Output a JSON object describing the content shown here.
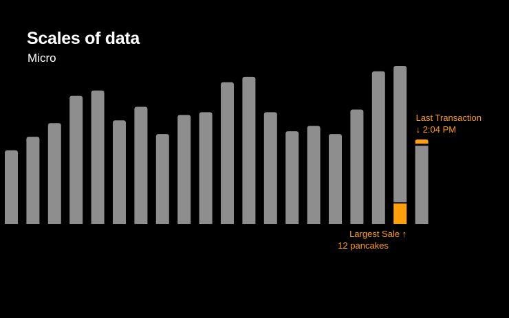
{
  "header": {
    "title": "Scales of data",
    "subtitle": "Micro"
  },
  "colors": {
    "background": "#000000",
    "bar": "#8e8e8f",
    "highlight": "#ff9f0a",
    "text": "#ffffff"
  },
  "chart_data": {
    "type": "bar",
    "title": "Scales of data",
    "subtitle": "Micro",
    "xlabel": "",
    "ylabel": "",
    "grid": false,
    "values": [
      27,
      32,
      37,
      47,
      49,
      38,
      43,
      33,
      40,
      41,
      52,
      54,
      41,
      34,
      36,
      33,
      42,
      56,
      58,
      31
    ],
    "ylim": [
      0,
      58
    ],
    "highlights": [
      {
        "index": 18,
        "kind": "largest_sale",
        "highlight_value": 12,
        "highlight_fraction": 0.129,
        "label_lines": [
          "Largest Sale ↑",
          "12 pancakes"
        ]
      },
      {
        "index": 19,
        "kind": "last_transaction",
        "highlight_fraction": 0.05,
        "label_lines": [
          "Last Transaction",
          "↓ 2:04 PM"
        ]
      }
    ]
  }
}
